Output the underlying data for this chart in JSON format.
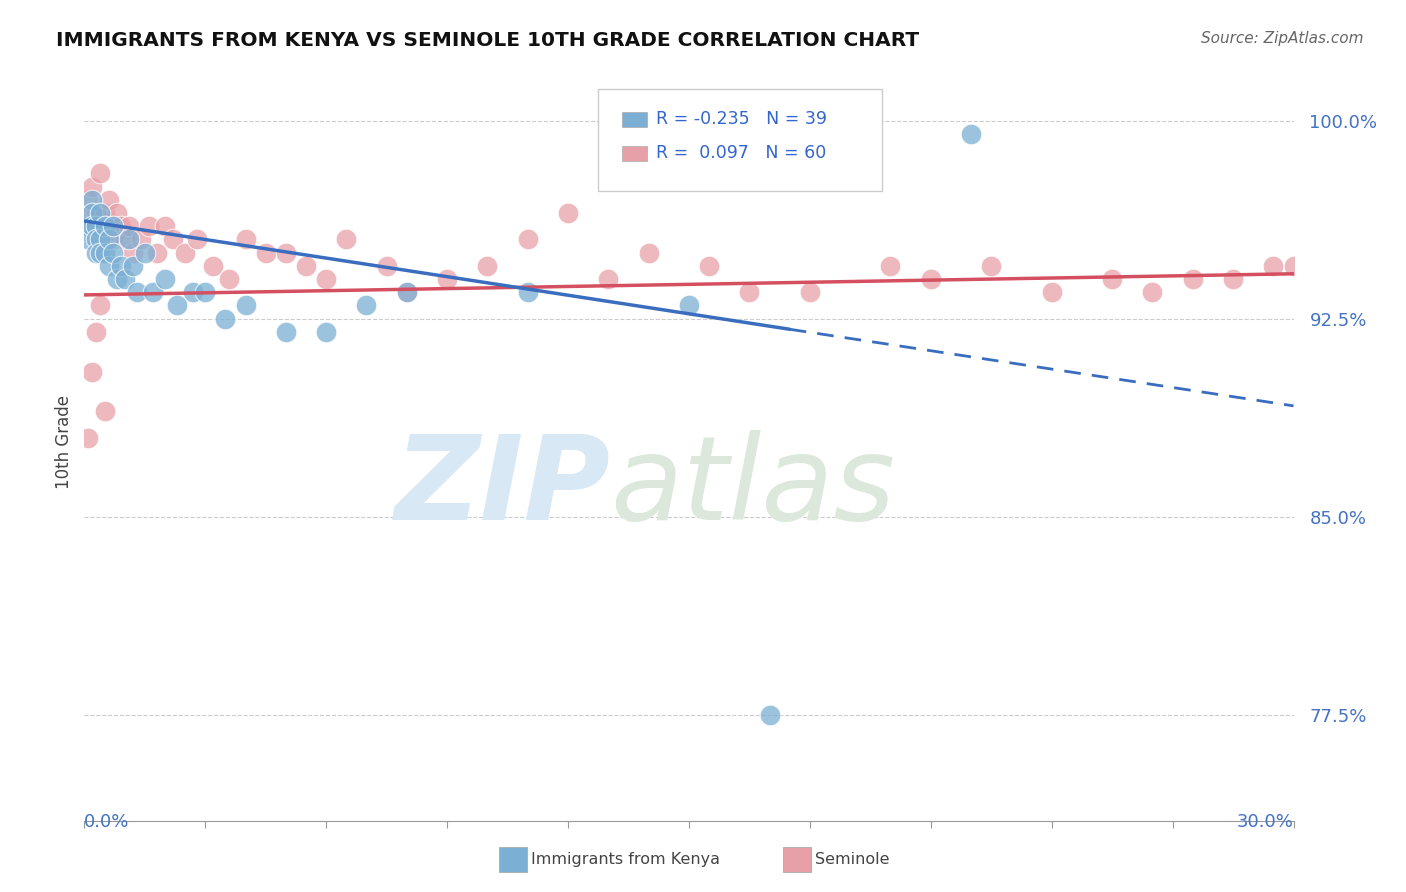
{
  "title": "IMMIGRANTS FROM KENYA VS SEMINOLE 10TH GRADE CORRELATION CHART",
  "source_text": "Source: ZipAtlas.com",
  "ylabel": "10th Grade",
  "xlim": [
    0.0,
    0.3
  ],
  "ylim": [
    0.735,
    1.022
  ],
  "yticks": [
    0.775,
    0.85,
    0.925,
    1.0
  ],
  "ytick_labels": [
    "77.5%",
    "85.0%",
    "92.5%",
    "100.0%"
  ],
  "legend_blue_R": "-0.235",
  "legend_blue_N": "39",
  "legend_pink_R": "0.097",
  "legend_pink_N": "60",
  "blue_color": "#7bafd4",
  "pink_color": "#e8a0a8",
  "trend_blue_color": "#3b6dbf",
  "trend_pink_color": "#d45060",
  "blue_scatter_x": [
    0.001,
    0.001,
    0.002,
    0.002,
    0.002,
    0.003,
    0.003,
    0.003,
    0.004,
    0.004,
    0.004,
    0.005,
    0.005,
    0.006,
    0.006,
    0.007,
    0.007,
    0.008,
    0.009,
    0.01,
    0.011,
    0.012,
    0.013,
    0.015,
    0.017,
    0.02,
    0.023,
    0.027,
    0.03,
    0.035,
    0.04,
    0.05,
    0.06,
    0.07,
    0.08,
    0.11,
    0.15,
    0.17,
    0.22
  ],
  "blue_scatter_y": [
    0.96,
    0.955,
    0.97,
    0.965,
    0.96,
    0.96,
    0.955,
    0.95,
    0.965,
    0.955,
    0.95,
    0.96,
    0.95,
    0.955,
    0.945,
    0.96,
    0.95,
    0.94,
    0.945,
    0.94,
    0.955,
    0.945,
    0.935,
    0.95,
    0.935,
    0.94,
    0.93,
    0.935,
    0.935,
    0.925,
    0.93,
    0.92,
    0.92,
    0.93,
    0.935,
    0.935,
    0.93,
    0.775,
    0.995
  ],
  "pink_scatter_x": [
    0.001,
    0.001,
    0.002,
    0.002,
    0.003,
    0.003,
    0.004,
    0.004,
    0.005,
    0.005,
    0.006,
    0.006,
    0.007,
    0.007,
    0.008,
    0.009,
    0.01,
    0.011,
    0.012,
    0.014,
    0.016,
    0.018,
    0.02,
    0.022,
    0.025,
    0.028,
    0.032,
    0.036,
    0.04,
    0.045,
    0.05,
    0.055,
    0.06,
    0.065,
    0.075,
    0.08,
    0.09,
    0.1,
    0.11,
    0.12,
    0.13,
    0.14,
    0.155,
    0.165,
    0.18,
    0.2,
    0.21,
    0.225,
    0.24,
    0.255,
    0.265,
    0.275,
    0.285,
    0.295,
    0.3,
    0.005,
    0.003,
    0.002,
    0.001,
    0.004
  ],
  "pink_scatter_y": [
    0.96,
    0.97,
    0.975,
    0.965,
    0.965,
    0.96,
    0.98,
    0.965,
    0.965,
    0.96,
    0.96,
    0.97,
    0.96,
    0.955,
    0.965,
    0.96,
    0.955,
    0.96,
    0.95,
    0.955,
    0.96,
    0.95,
    0.96,
    0.955,
    0.95,
    0.955,
    0.945,
    0.94,
    0.955,
    0.95,
    0.95,
    0.945,
    0.94,
    0.955,
    0.945,
    0.935,
    0.94,
    0.945,
    0.955,
    0.965,
    0.94,
    0.95,
    0.945,
    0.935,
    0.935,
    0.945,
    0.94,
    0.945,
    0.935,
    0.94,
    0.935,
    0.94,
    0.94,
    0.945,
    0.945,
    0.89,
    0.92,
    0.905,
    0.88,
    0.93
  ],
  "trend_blue_x0": 0.0,
  "trend_blue_y0": 0.962,
  "trend_blue_x1_solid": 0.175,
  "trend_blue_y1_solid": 0.921,
  "trend_blue_x1_dash": 0.3,
  "trend_blue_y1_dash": 0.892,
  "trend_pink_x0": 0.0,
  "trend_pink_y0": 0.934,
  "trend_pink_x1": 0.3,
  "trend_pink_y1": 0.942
}
